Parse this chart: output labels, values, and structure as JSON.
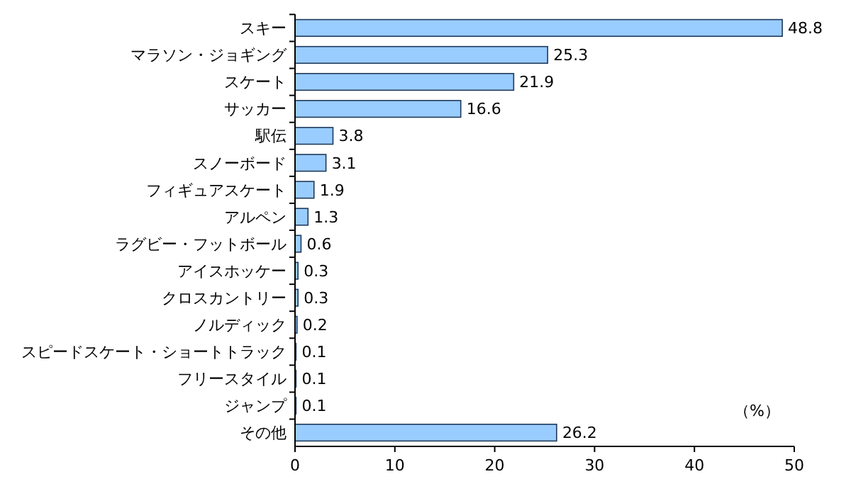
{
  "chart_data": {
    "type": "bar",
    "orientation": "horizontal",
    "categories": [
      "スキー",
      "マラソン・ジョギング",
      "スケート",
      "サッカー",
      "駅伝",
      "スノーボード",
      "フィギュアスケート",
      "アルペン",
      "ラグビー・フットボール",
      "アイスホッケー",
      "クロスカントリー",
      "ノルディック",
      "スピードスケート・ショートトラック",
      "フリースタイル",
      "ジャンプ",
      "その他"
    ],
    "values": [
      48.8,
      25.3,
      21.9,
      16.6,
      3.8,
      3.1,
      1.9,
      1.3,
      0.6,
      0.3,
      0.3,
      0.2,
      0.1,
      0.1,
      0.1,
      26.2
    ],
    "color": "#99ccff",
    "xlim": [
      0,
      50
    ],
    "xticks": [
      0,
      10,
      20,
      30,
      40,
      50
    ],
    "data_labels": true,
    "grid": false,
    "annotations": [
      "（%）"
    ]
  }
}
